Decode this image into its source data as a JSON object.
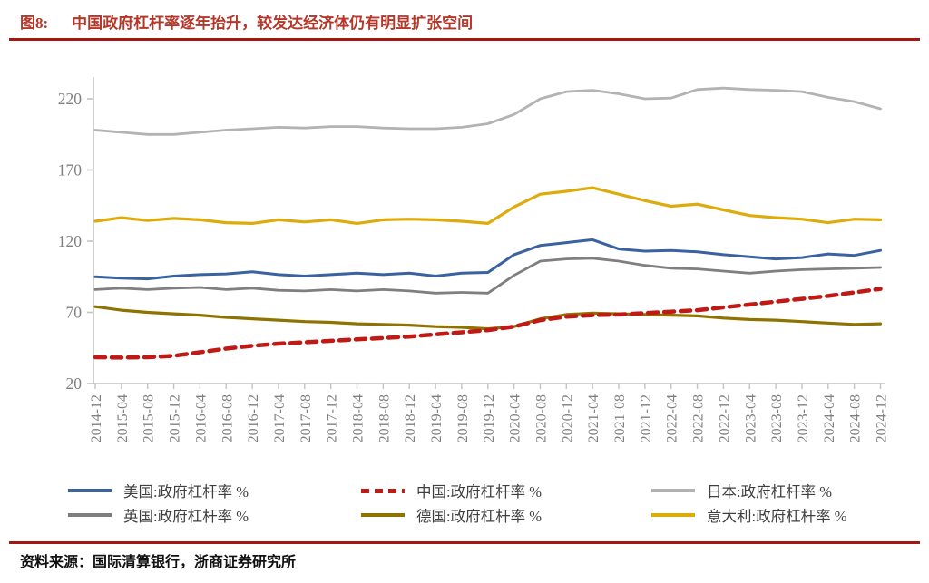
{
  "title": {
    "tag": "图8:",
    "text": "中国政府杠杆率逐年抬升，较发达经济体仍有明显扩张空间"
  },
  "source": {
    "label": "资料来源：",
    "text": "国际清算银行，浙商证券研究所"
  },
  "colors": {
    "title_red": "#b5372a",
    "rule_red": "#a31911",
    "axis_gray": "#c3c3c3",
    "tick_label_gray": "#808080",
    "legend_text": "#3f3f3f"
  },
  "chart_data": {
    "type": "line",
    "title": "",
    "xlabel": "",
    "ylabel": "",
    "ylim": [
      20,
      220
    ],
    "yticks": [
      20,
      70,
      120,
      170,
      220
    ],
    "grid": false,
    "legend_position": "bottom",
    "x": [
      "2014-12",
      "2015-04",
      "2015-08",
      "2015-12",
      "2016-04",
      "2016-08",
      "2016-12",
      "2017-04",
      "2017-08",
      "2017-12",
      "2018-04",
      "2018-08",
      "2018-12",
      "2019-04",
      "2019-08",
      "2019-12",
      "2020-04",
      "2020-08",
      "2020-12",
      "2021-04",
      "2021-08",
      "2021-12",
      "2022-04",
      "2022-08",
      "2022-12",
      "2023-04",
      "2023-08",
      "2023-12",
      "2024-04",
      "2024-08",
      "2024-12"
    ],
    "series": [
      {
        "name": "美国:政府杠杆率 %",
        "color": "#3a62a0",
        "dash": false,
        "width": 3,
        "values": [
          95,
          94,
          93.5,
          95.5,
          96.5,
          97,
          98.5,
          96.5,
          95.5,
          96.5,
          97.5,
          96.5,
          97.5,
          95.5,
          97.5,
          98,
          110.5,
          117,
          119,
          121,
          114.5,
          113,
          113.5,
          112.5,
          110.5,
          109,
          107.5,
          108.5,
          111,
          110,
          113.5
        ]
      },
      {
        "name": "中国:政府杠杆率 %",
        "color": "#bf1a15",
        "dash": true,
        "width": 4.5,
        "values": [
          38.5,
          38.2,
          38.5,
          39.5,
          42,
          44.5,
          46.5,
          48,
          49,
          50,
          51,
          52,
          53,
          54.5,
          56,
          57.5,
          60,
          64.5,
          67,
          68,
          68.5,
          69.5,
          70.5,
          71.5,
          73.5,
          75.5,
          77.5,
          79.5,
          81.5,
          84,
          86.5
        ]
      },
      {
        "name": "日本:政府杠杆率 %",
        "color": "#b3b3b3",
        "dash": false,
        "width": 2.8,
        "values": [
          198,
          196.5,
          195,
          195,
          196.5,
          198,
          199,
          200,
          199.5,
          200.5,
          200.5,
          199.5,
          199,
          199,
          200,
          202.5,
          209,
          220,
          225,
          226,
          223.5,
          220,
          220.5,
          226.5,
          227.5,
          226.5,
          226,
          225,
          221,
          218,
          213
        ]
      },
      {
        "name": "英国:政府杠杆率 %",
        "color": "#7f7f7f",
        "dash": false,
        "width": 2.8,
        "values": [
          86,
          87,
          86,
          87,
          87.5,
          86,
          87,
          85.5,
          85,
          86,
          85,
          86,
          85,
          83.5,
          84,
          83.5,
          96,
          106,
          107.5,
          108,
          106,
          103,
          101,
          100.5,
          99,
          97.5,
          99,
          100,
          100.5,
          101,
          101.5
        ]
      },
      {
        "name": "德国:政府杠杆率 %",
        "color": "#8e7300",
        "dash": false,
        "width": 3.2,
        "values": [
          74,
          71.5,
          70,
          69,
          68,
          66.5,
          65.5,
          64.5,
          63.5,
          63,
          62,
          61.5,
          61,
          60,
          59.5,
          58.5,
          60,
          65.5,
          68.5,
          69.5,
          69,
          68.5,
          68,
          67.5,
          66,
          65,
          64.5,
          63.5,
          62.5,
          61.5,
          62
        ]
      },
      {
        "name": "意大利:政府杠杆率 %",
        "color": "#ddab0c",
        "dash": false,
        "width": 3.2,
        "values": [
          134,
          136.5,
          134.5,
          136,
          135,
          133,
          132.5,
          135,
          133.5,
          135,
          132.5,
          135,
          135.5,
          135,
          134,
          132.5,
          144,
          153,
          155,
          157.5,
          153,
          148.5,
          144.5,
          146,
          142,
          138,
          136.5,
          135.5,
          133,
          135.5,
          135
        ]
      }
    ],
    "legend_order": [
      0,
      1,
      2,
      3,
      4,
      5
    ],
    "legend_columns_x": [
      75,
      398,
      718
    ],
    "legend_rows_y": [
      3,
      30
    ]
  }
}
